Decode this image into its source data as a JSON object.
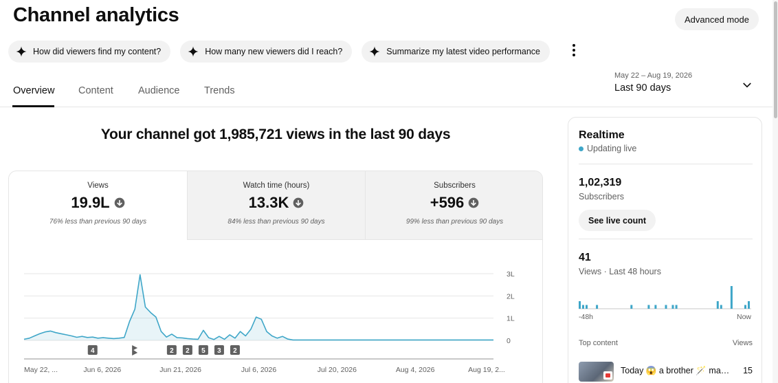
{
  "header": {
    "title": "Channel analytics",
    "advanced_mode": "Advanced mode"
  },
  "suggestions": [
    "How did viewers find my content?",
    "How many new viewers did I reach?",
    "Summarize my latest video performance"
  ],
  "tabs": [
    "Overview",
    "Content",
    "Audience",
    "Trends"
  ],
  "active_tab": "Overview",
  "date_range": {
    "dates": "May 22 – Aug 19, 2026",
    "label": "Last 90 days"
  },
  "headline": "Your channel got 1,985,721 views in the last 90 days",
  "metrics": [
    {
      "label": "Views",
      "value": "19.9L",
      "note": "76% less than previous 90 days"
    },
    {
      "label": "Watch time (hours)",
      "value": "13.3K",
      "note": "84% less than previous 90 days"
    },
    {
      "label": "Subscribers",
      "value": "+596",
      "note": "99% less than previous 90 days"
    }
  ],
  "colors": {
    "accent": "#3ea6c8",
    "chip_bg": "#f2f2f2",
    "text": "#0f0f0f",
    "muted": "#606060"
  },
  "chart_data": {
    "type": "area",
    "y_tick_labels": [
      "0",
      "1L",
      "2L",
      "3L"
    ],
    "ylim": [
      0,
      3
    ],
    "x_tick_labels": [
      "May 22, ...",
      "Jun 6, 2026",
      "Jun 21, 2026",
      "Jul 6, 2026",
      "Jul 20, 2026",
      "Aug 4, 2026",
      "Aug 19, 2..."
    ],
    "values": [
      0.05,
      0.1,
      0.2,
      0.3,
      0.38,
      0.42,
      0.35,
      0.3,
      0.25,
      0.2,
      0.14,
      0.18,
      0.13,
      0.15,
      0.1,
      0.12,
      0.1,
      0.08,
      0.1,
      0.13,
      0.85,
      1.4,
      2.95,
      1.5,
      1.25,
      1.05,
      0.4,
      0.15,
      0.28,
      0.12,
      0.11,
      0.08,
      0.06,
      0.05,
      0.45,
      0.12,
      0.04,
      0.18,
      0.05,
      0.25,
      0.1,
      0.4,
      0.2,
      0.5,
      1.05,
      0.95,
      0.4,
      0.2,
      0.1,
      0.18,
      0.06,
      0.02,
      0.02,
      0.02,
      0.02,
      0.02,
      0.02,
      0.02,
      0.02,
      0.02,
      0.02,
      0.02,
      0.02,
      0.02,
      0.02,
      0.02,
      0.02,
      0.02,
      0.02,
      0.02,
      0.02,
      0.02,
      0.02,
      0.02,
      0.02,
      0.02,
      0.02,
      0.02,
      0.02,
      0.02,
      0.02,
      0.02,
      0.02,
      0.02,
      0.02,
      0.02,
      0.02,
      0.02,
      0.02,
      0.02
    ],
    "markers": [
      {
        "label": "4",
        "day": 13
      },
      {
        "label": "shorts-icon",
        "day": 21
      },
      {
        "label": "2",
        "day": 28
      },
      {
        "label": "2",
        "day": 31
      },
      {
        "label": "5",
        "day": 34
      },
      {
        "label": "3",
        "day": 37
      },
      {
        "label": "2",
        "day": 40
      }
    ],
    "grid": true
  },
  "realtime": {
    "title": "Realtime",
    "live_label": "Updating live",
    "subscribers": "1,02,319",
    "subscribers_label": "Subscribers",
    "see_live_count": "See live count",
    "views": "41",
    "views_label": "Views · Last 48 hours",
    "axis_start": "-48h",
    "axis_end": "Now",
    "bars": [
      2,
      1,
      1,
      0,
      0,
      1,
      0,
      0,
      0,
      0,
      0,
      0,
      0,
      0,
      0,
      1,
      0,
      0,
      0,
      0,
      1,
      0,
      1,
      0,
      0,
      1,
      0,
      1,
      1,
      0,
      0,
      0,
      0,
      0,
      0,
      0,
      0,
      0,
      0,
      0,
      2,
      1,
      0,
      0,
      6,
      0,
      0,
      0,
      1,
      2
    ],
    "top_content_label": "Top content",
    "top_views_label": "Views",
    "top_item": {
      "title": "Today 😱 a brother 🪄 made…",
      "views": "15"
    }
  }
}
